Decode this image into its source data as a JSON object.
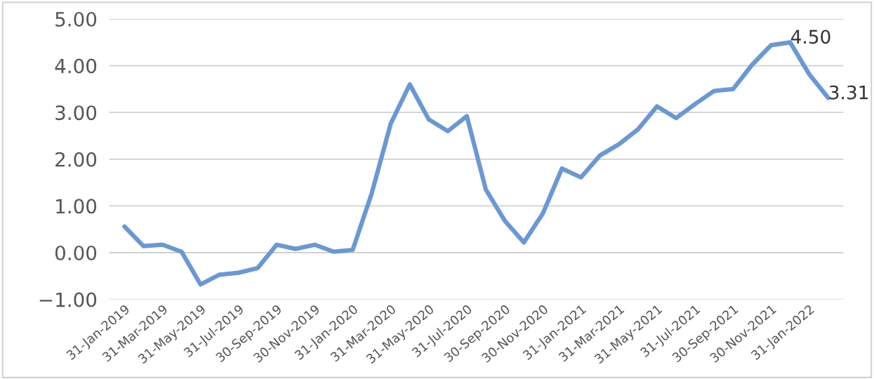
{
  "chart_data": {
    "type": "line",
    "categories": [
      "31-Jan-2019",
      null,
      "31-Mar-2019",
      null,
      "31-May-2019",
      null,
      "31-Jul-2019",
      null,
      "30-Sep-2019",
      null,
      "30-Nov-2019",
      null,
      "31-Jan-2020",
      null,
      "31-Mar-2020",
      null,
      "31-May-2020",
      null,
      "31-Jul-2020",
      null,
      "30-Sep-2020",
      null,
      "30-Nov-2020",
      null,
      "31-Jan-2021",
      null,
      "31-Mar-2021",
      null,
      "31-May-2021",
      null,
      "31-Jul-2021",
      null,
      "30-Sep-2021",
      null,
      "30-Nov-2021",
      null,
      "31-Jan-2022",
      null
    ],
    "series": [
      {
        "color": "#6a98d5",
        "values": [
          0.56,
          0.14,
          0.17,
          0.02,
          -0.68,
          -0.47,
          -0.43,
          -0.33,
          0.17,
          0.08,
          0.17,
          0.02,
          0.06,
          1.27,
          2.76,
          3.6,
          2.85,
          2.6,
          2.92,
          1.35,
          0.68,
          0.22,
          0.84,
          1.8,
          1.61,
          2.08,
          2.32,
          2.64,
          3.13,
          2.88,
          3.18,
          3.46,
          3.5,
          4.02,
          4.44,
          4.5,
          3.82,
          3.31
        ],
        "value_labels": [
          null,
          null,
          null,
          null,
          null,
          null,
          null,
          null,
          null,
          null,
          null,
          null,
          null,
          null,
          null,
          null,
          null,
          null,
          null,
          null,
          null,
          null,
          null,
          null,
          null,
          null,
          null,
          null,
          null,
          null,
          null,
          null,
          null,
          null,
          null,
          "4.50",
          null,
          "3.31"
        ]
      }
    ],
    "ylim": [
      -1,
      5
    ],
    "yticks": [
      {
        "value": -1,
        "label": "−1.00"
      },
      {
        "value": 0,
        "label": "0.00"
      },
      {
        "value": 1,
        "label": "1.00"
      },
      {
        "value": 2,
        "label": "2.00"
      },
      {
        "value": 3,
        "label": "3.00"
      },
      {
        "value": 4,
        "label": "4.00"
      },
      {
        "value": 5,
        "label": "5.00"
      }
    ],
    "grid": "y",
    "legend": false,
    "marker": "none",
    "line_style": "solid"
  }
}
